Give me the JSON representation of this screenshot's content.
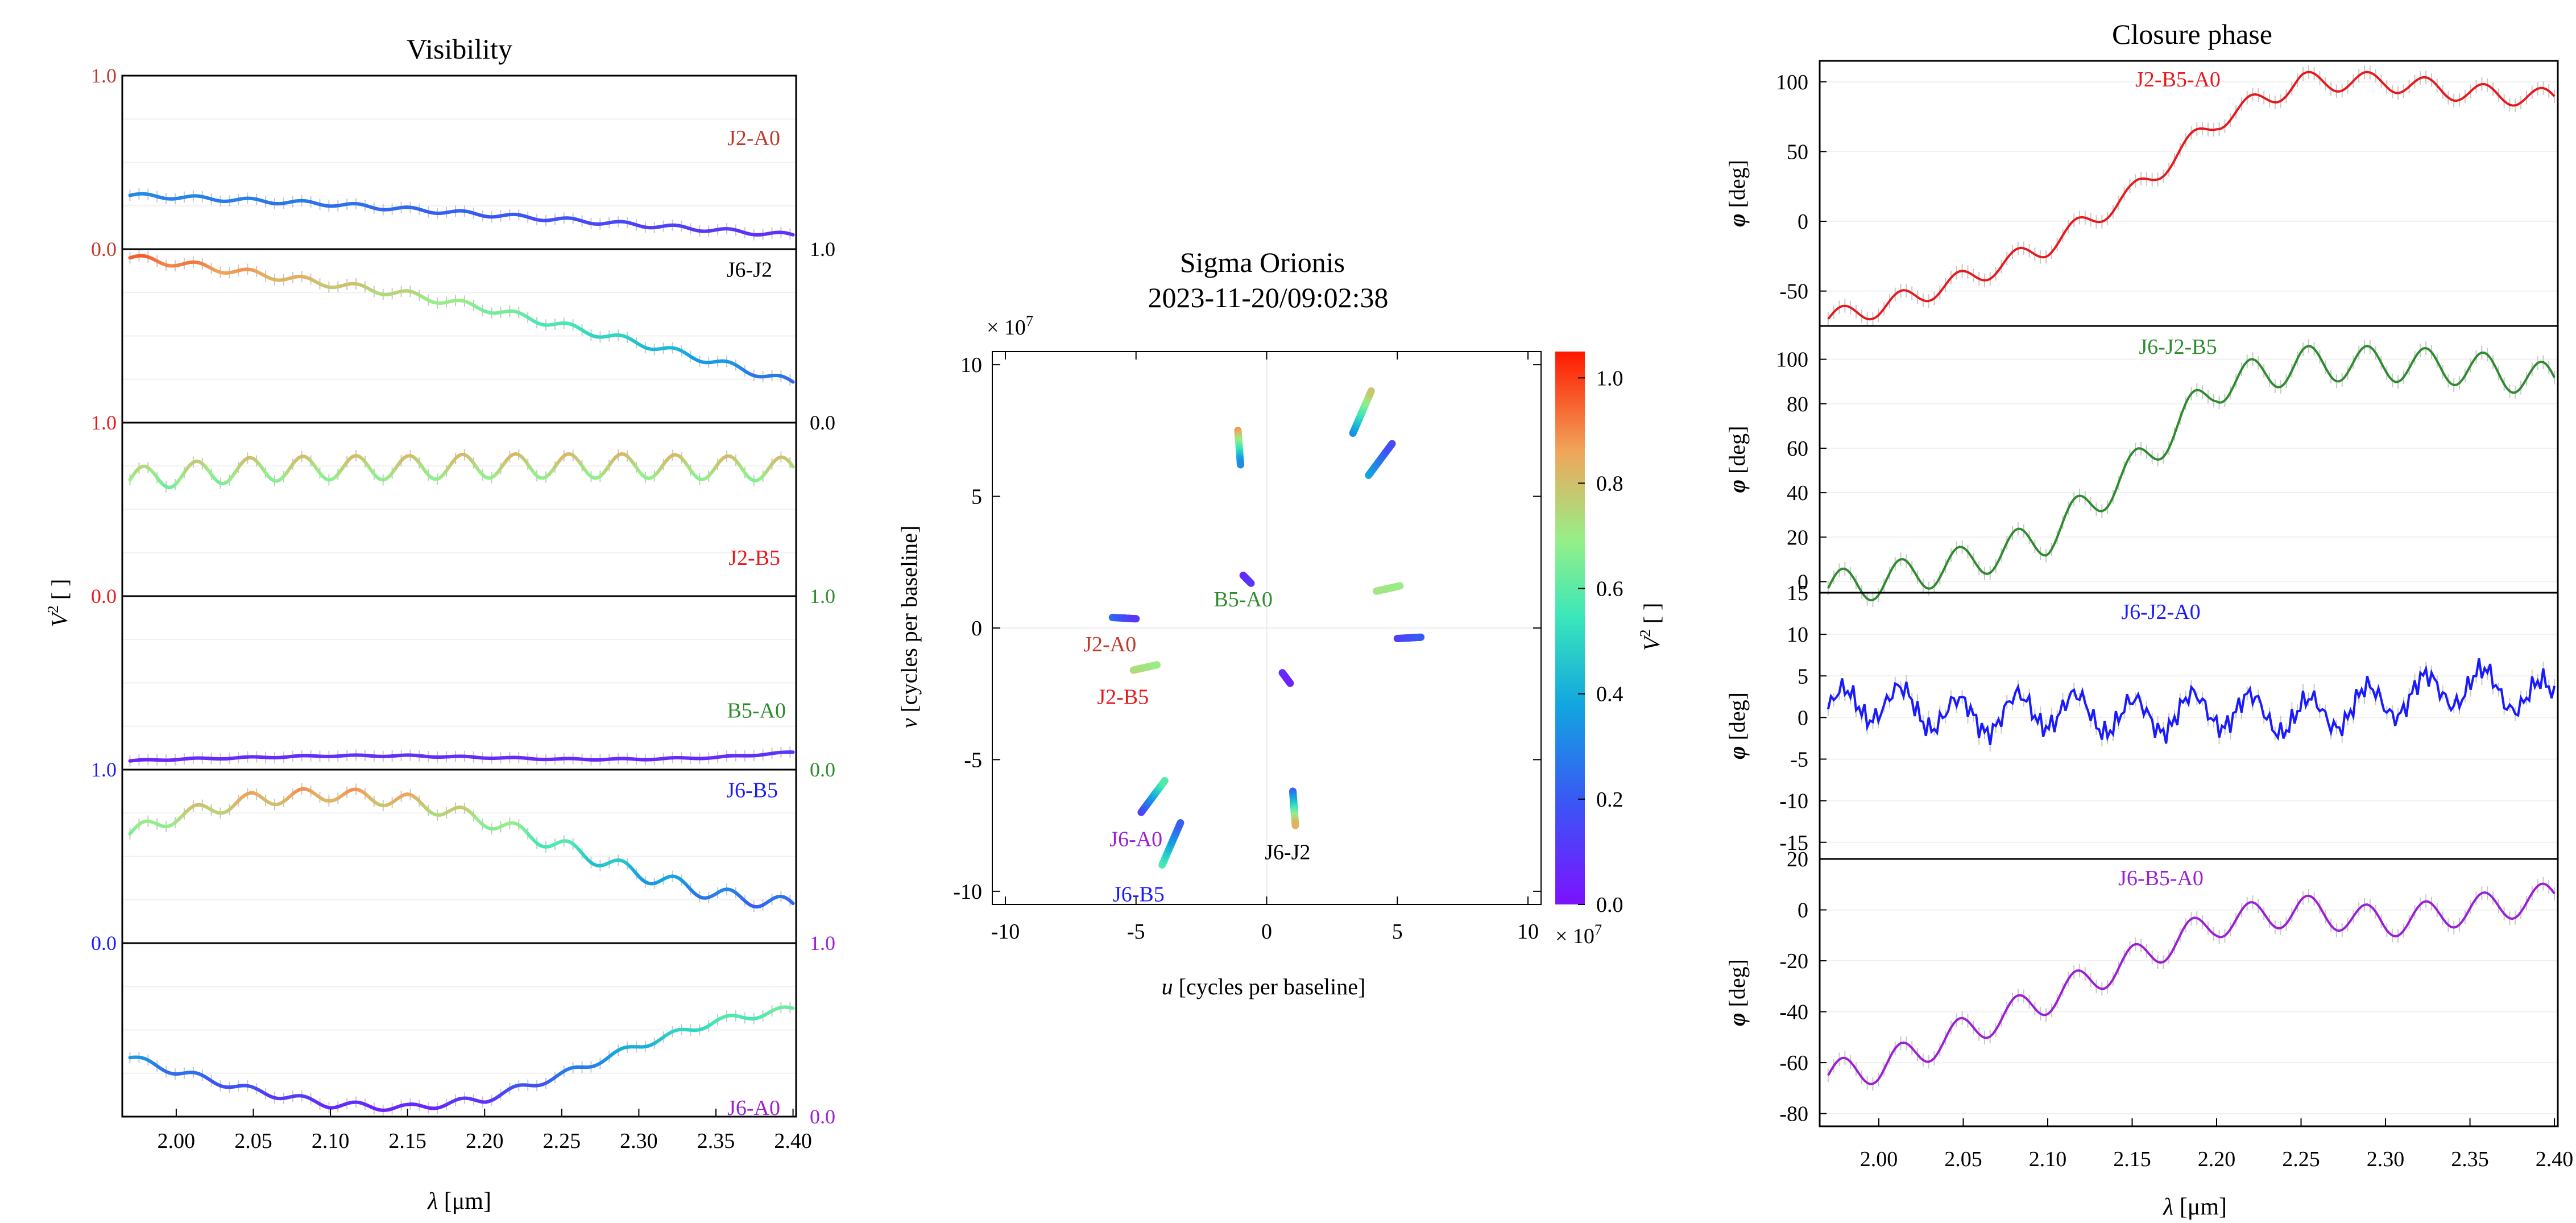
{
  "visibility": {
    "title": "Visibility",
    "ylabel_main": "V",
    "ylabel_sup": "2",
    "ylabel_unit": " [ ]",
    "xlabel_sym": "λ",
    "xlabel_unit": " [μm]",
    "x_ticks": [
      "2.00",
      "2.05",
      "2.10",
      "2.15",
      "2.20",
      "2.25",
      "2.30",
      "2.35",
      "2.40"
    ],
    "xlim": [
      1.965,
      2.402
    ],
    "tick_top": "1.0",
    "tick_bottom": "0.0"
  },
  "uv": {
    "title_line1": "Sigma Orionis",
    "title_line2": "2023-11-20/09:02:38",
    "xlabel_sym": "u",
    "xlabel_rest": " [cycles per baseline]",
    "ylabel_sym": "v",
    "ylabel_rest": " [cycles per baseline]",
    "multiplier": "× 10",
    "multiplier_exp": "7",
    "ticks": [
      "-10",
      "-5",
      "0",
      "5",
      "10"
    ],
    "colorbar_ticks": [
      "0.0",
      "0.2",
      "0.4",
      "0.6",
      "0.8",
      "1.0"
    ],
    "colorbar_label_main": "V",
    "colorbar_label_sup": "2",
    "colorbar_label_unit": " [ ]"
  },
  "closure": {
    "title": "Closure phase",
    "ylabel_sym": "φ",
    "ylabel_unit": " [deg]",
    "xlabel_sym": "λ",
    "xlabel_unit": " [μm]",
    "x_ticks": [
      "2.00",
      "2.05",
      "2.10",
      "2.15",
      "2.20",
      "2.25",
      "2.30",
      "2.35",
      "2.40"
    ]
  },
  "colors": {
    "J2-A0": "#c0392b",
    "J6-J2": "#000000",
    "J2-B5": "#e8191c",
    "B5-A0": "#2e8b2e",
    "J6-B5": "#1a1aff",
    "J6-A0": "#9b1fd4",
    "J6-J2-B5": "#2e8b2e",
    "J6-J2-A0": "#1a1aff",
    "J6-B5-A0": "#9b1fd4",
    "J2-B5-A0": "#e8191c"
  },
  "chart_data": [
    {
      "type": "line",
      "title": "Visibility",
      "xlabel": "λ [μm]",
      "ylabel": "V2 [ ]",
      "ylim": [
        0,
        1
      ],
      "x": [
        1.97,
        2.0,
        2.05,
        2.1,
        2.15,
        2.2,
        2.25,
        2.3,
        2.35,
        2.4
      ],
      "series": [
        {
          "name": "J2-A0",
          "values": [
            0.31,
            0.3,
            0.28,
            0.26,
            0.23,
            0.2,
            0.17,
            0.14,
            0.11,
            0.08
          ]
        },
        {
          "name": "J6-J2",
          "values": [
            0.95,
            0.92,
            0.86,
            0.8,
            0.74,
            0.66,
            0.56,
            0.46,
            0.35,
            0.23
          ]
        },
        {
          "name": "J2-B5",
          "values": [
            0.67,
            0.7,
            0.73,
            0.74,
            0.74,
            0.75,
            0.75,
            0.75,
            0.74,
            0.73
          ]
        },
        {
          "name": "B5-A0",
          "values": [
            0.05,
            0.06,
            0.07,
            0.08,
            0.08,
            0.07,
            0.06,
            0.06,
            0.07,
            0.1
          ]
        },
        {
          "name": "J6-B5",
          "values": [
            0.63,
            0.73,
            0.83,
            0.86,
            0.82,
            0.71,
            0.56,
            0.4,
            0.28,
            0.22
          ]
        },
        {
          "name": "J6-A0",
          "values": [
            0.34,
            0.26,
            0.15,
            0.07,
            0.05,
            0.1,
            0.24,
            0.41,
            0.55,
            0.62
          ]
        }
      ]
    },
    {
      "type": "scatter",
      "title": "Sigma Orionis 2023-11-20/09:02:38",
      "xlabel": "u [cycles per baseline]",
      "ylabel": "v [cycles per baseline]",
      "xlim": [
        -10.5,
        10.5
      ],
      "ylim": [
        -10.5,
        10.5
      ],
      "unit_multiplier": "× 10^7",
      "colorbar": {
        "label": "V2 [ ]",
        "range": [
          0,
          1.05
        ]
      },
      "series": [
        {
          "name": "J2-A0",
          "points": [
            [
              -5.9,
              0.4,
              0.25
            ],
            [
              -5.0,
              0.35,
              0.1
            ],
            [
              5.0,
              -0.4,
              0.12
            ],
            [
              5.9,
              -0.35,
              0.2
            ]
          ]
        },
        {
          "name": "J2-B5",
          "points": [
            [
              -5.1,
              -1.6,
              0.75
            ],
            [
              -4.2,
              -1.4,
              0.7
            ],
            [
              4.2,
              1.4,
              0.72
            ],
            [
              5.1,
              1.6,
              0.7
            ]
          ]
        },
        {
          "name": "B5-A0",
          "points": [
            [
              -0.9,
              2.0,
              0.05
            ],
            [
              -0.6,
              1.7,
              0.1
            ],
            [
              0.6,
              -1.7,
              0.08
            ],
            [
              0.9,
              -2.1,
              0.05
            ]
          ]
        },
        {
          "name": "J6-A0",
          "points": [
            [
              -4.8,
              -7.0,
              0.1
            ],
            [
              -3.9,
              -5.8,
              0.6
            ],
            [
              3.9,
              5.8,
              0.4
            ],
            [
              4.8,
              7.0,
              0.15
            ]
          ]
        },
        {
          "name": "J6-B5",
          "points": [
            [
              -4.0,
              -9.0,
              0.6
            ],
            [
              -3.3,
              -7.4,
              0.2
            ],
            [
              3.3,
              7.4,
              0.3
            ],
            [
              4.0,
              9.0,
              0.8
            ]
          ]
        },
        {
          "name": "J6-J2",
          "points": [
            [
              -1.1,
              7.5,
              0.9
            ],
            [
              -1.0,
              6.2,
              0.3
            ],
            [
              1.0,
              -6.2,
              0.2
            ],
            [
              1.1,
              -7.5,
              0.85
            ]
          ]
        }
      ]
    },
    {
      "type": "line",
      "title": "Closure phase",
      "xlabel": "λ [μm]",
      "ylabel": "φ [deg]",
      "x": [
        1.97,
        2.0,
        2.05,
        2.1,
        2.15,
        2.2,
        2.25,
        2.3,
        2.35,
        2.4
      ],
      "series": [
        {
          "name": "J2-B5-A0",
          "ylim": [
            -75,
            115
          ],
          "values": [
            -70,
            -62,
            -42,
            -18,
            20,
            72,
            100,
            100,
            92,
            88
          ]
        },
        {
          "name": "J6-J2-B5",
          "ylim": [
            -5,
            115
          ],
          "values": [
            -3,
            0,
            8,
            20,
            50,
            88,
            98,
            98,
            96,
            90
          ]
        },
        {
          "name": "J6-J2-A0",
          "ylim": [
            -17,
            15
          ],
          "values": [
            1,
            2,
            0,
            1,
            0,
            1,
            0,
            2,
            4,
            2
          ]
        },
        {
          "name": "J6-B5-A0",
          "ylim": [
            -85,
            20
          ],
          "values": [
            -65,
            -62,
            -48,
            -35,
            -20,
            -5,
            0,
            -5,
            0,
            5
          ]
        }
      ]
    }
  ]
}
